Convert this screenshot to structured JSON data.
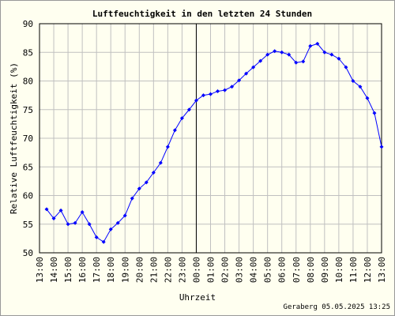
{
  "chart_data": {
    "type": "line",
    "title": "Luftfeuchtigkeit in den letzten 24 Stunden",
    "xlabel": "Uhrzeit",
    "ylabel": "Relative Luftfeuchtigkeit (%)",
    "footer": "Geraberg 05.05.2025 13:25",
    "x": [
      0.5,
      1,
      1.5,
      2,
      2.5,
      3,
      3.5,
      4,
      4.5,
      5,
      5.5,
      6,
      6.5,
      7,
      7.5,
      8,
      8.5,
      9,
      9.5,
      10,
      10.5,
      11,
      11.5,
      12,
      12.5,
      13,
      13.5,
      14,
      14.5,
      15,
      15.5,
      16,
      16.5,
      17,
      17.5,
      18,
      18.5,
      19,
      19.5,
      20,
      20.5,
      21,
      21.5,
      22,
      22.5,
      23,
      23.5,
      24
    ],
    "series": [
      {
        "name": "Luftfeuchtigkeit",
        "color": "#0000ff",
        "values": [
          57.6,
          56,
          57.4,
          55,
          55.2,
          57.1,
          55,
          52.7,
          51.9,
          54.1,
          55.2,
          56.5,
          59.5,
          61.2,
          62.3,
          64,
          65.7,
          68.5,
          71.4,
          73.5,
          75,
          76.6,
          77.5,
          77.7,
          78.2,
          78.4,
          79,
          80.1,
          81.3,
          82.4,
          83.5,
          84.6,
          85.2,
          85,
          84.6,
          83.2,
          83.4,
          86.1,
          86.5,
          85,
          84.6,
          83.9,
          82.4,
          80,
          79,
          77,
          74.4,
          68.5
        ]
      }
    ],
    "xlim": [
      0,
      24
    ],
    "xticks": [
      {
        "value": 0,
        "label": "13:00"
      },
      {
        "value": 1,
        "label": "14:00"
      },
      {
        "value": 2,
        "label": "15:00"
      },
      {
        "value": 3,
        "label": "16:00"
      },
      {
        "value": 4,
        "label": "17:00"
      },
      {
        "value": 5,
        "label": "18:00"
      },
      {
        "value": 6,
        "label": "19:00"
      },
      {
        "value": 7,
        "label": "20:00"
      },
      {
        "value": 8,
        "label": "21:00"
      },
      {
        "value": 9,
        "label": "22:00"
      },
      {
        "value": 10,
        "label": "23:00"
      },
      {
        "value": 11,
        "label": "00:00"
      },
      {
        "value": 12,
        "label": "01:00"
      },
      {
        "value": 13,
        "label": "02:00"
      },
      {
        "value": 14,
        "label": "03:00"
      },
      {
        "value": 15,
        "label": "04:00"
      },
      {
        "value": 16,
        "label": "05:00"
      },
      {
        "value": 17,
        "label": "06:00"
      },
      {
        "value": 18,
        "label": "07:00"
      },
      {
        "value": 19,
        "label": "08:00"
      },
      {
        "value": 20,
        "label": "09:00"
      },
      {
        "value": 21,
        "label": "10:00"
      },
      {
        "value": 22,
        "label": "11:00"
      },
      {
        "value": 23,
        "label": "12:00"
      },
      {
        "value": 24,
        "label": "13:00"
      }
    ],
    "ylim": [
      50,
      90
    ],
    "yticks": [
      50,
      55,
      60,
      65,
      70,
      75,
      80,
      85,
      90
    ],
    "grid": true,
    "vline": 11
  }
}
